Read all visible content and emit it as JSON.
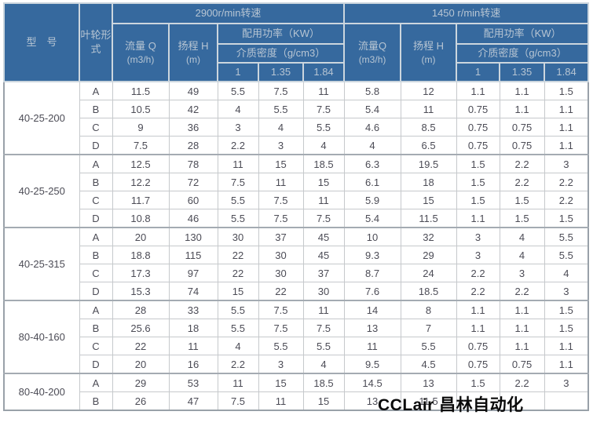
{
  "table": {
    "header": {
      "model": "型　号",
      "impeller": "叶轮形式",
      "speed_2900": "2900r/min转速",
      "speed_1450": "1450 r/min转速",
      "flow_2900": "流量 Q",
      "flow_1450": "流量Q",
      "flow_unit": "(m3/h)",
      "head_label": "扬程 H",
      "head_unit": "(m)",
      "power": "配用功率（KW）",
      "density": "介质密度（g/cm3）",
      "density_values": [
        "1",
        "1.35",
        "1.84"
      ]
    },
    "groups": [
      {
        "model": "40-25-200",
        "rows": [
          {
            "type": "A",
            "values": [
              "11.5",
              "49",
              "5.5",
              "7.5",
              "11",
              "5.8",
              "12",
              "1.1",
              "1.1",
              "1.5"
            ]
          },
          {
            "type": "B",
            "values": [
              "10.5",
              "42",
              "4",
              "5.5",
              "7.5",
              "5.4",
              "11",
              "0.75",
              "1.1",
              "1.1"
            ]
          },
          {
            "type": "C",
            "values": [
              "9",
              "36",
              "3",
              "4",
              "5.5",
              "4.6",
              "8.5",
              "0.75",
              "0.75",
              "1.1"
            ]
          },
          {
            "type": "D",
            "values": [
              "7.5",
              "28",
              "2.2",
              "3",
              "4",
              "4",
              "6.5",
              "0.75",
              "0.75",
              "1.1"
            ]
          }
        ]
      },
      {
        "model": "40-25-250",
        "rows": [
          {
            "type": "A",
            "values": [
              "12.5",
              "78",
              "11",
              "15",
              "18.5",
              "6.3",
              "19.5",
              "1.5",
              "2.2",
              "3"
            ]
          },
          {
            "type": "B",
            "values": [
              "12.2",
              "72",
              "7.5",
              "11",
              "15",
              "6.1",
              "18",
              "1.5",
              "2.2",
              "2.2"
            ]
          },
          {
            "type": "C",
            "values": [
              "11.7",
              "60",
              "5.5",
              "7.5",
              "11",
              "5.9",
              "15",
              "1.5",
              "1.5",
              "2.2"
            ]
          },
          {
            "type": "D",
            "values": [
              "10.8",
              "46",
              "5.5",
              "7.5",
              "7.5",
              "5.4",
              "11.5",
              "1.1",
              "1.5",
              "1.5"
            ]
          }
        ]
      },
      {
        "model": "40-25-315",
        "rows": [
          {
            "type": "A",
            "values": [
              "20",
              "130",
              "30",
              "37",
              "45",
              "10",
              "32",
              "3",
              "4",
              "5.5"
            ]
          },
          {
            "type": "B",
            "values": [
              "18.8",
              "115",
              "22",
              "30",
              "45",
              "9.3",
              "29",
              "3",
              "4",
              "5.5"
            ]
          },
          {
            "type": "C",
            "values": [
              "17.3",
              "97",
              "22",
              "30",
              "37",
              "8.7",
              "24",
              "2.2",
              "3",
              "4"
            ]
          },
          {
            "type": "D",
            "values": [
              "15.3",
              "74",
              "15",
              "22",
              "30",
              "7.6",
              "18.5",
              "2.2",
              "2.2",
              "3"
            ]
          }
        ]
      },
      {
        "model": "80-40-160",
        "rows": [
          {
            "type": "A",
            "values": [
              "28",
              "33",
              "5.5",
              "7.5",
              "11",
              "14",
              "8",
              "1.1",
              "1.1",
              "1.5"
            ]
          },
          {
            "type": "B",
            "values": [
              "25.6",
              "18",
              "5.5",
              "7.5",
              "7.5",
              "13",
              "7",
              "1.1",
              "1.1",
              "1.5"
            ]
          },
          {
            "type": "C",
            "values": [
              "22",
              "11",
              "4",
              "5.5",
              "5.5",
              "11",
              "5.5",
              "0.75",
              "1.1",
              "1.1"
            ]
          },
          {
            "type": "D",
            "values": [
              "20",
              "16",
              "2.2",
              "3",
              "4",
              "9.5",
              "4.5",
              "0.75",
              "0.75",
              "1.1"
            ]
          }
        ]
      },
      {
        "model": "80-40-200",
        "rows": [
          {
            "type": "A",
            "values": [
              "29",
              "53",
              "11",
              "15",
              "18.5",
              "14.5",
              "13",
              "1.5",
              "2.2",
              "3"
            ]
          },
          {
            "type": "B",
            "values": [
              "26",
              "47",
              "7.5",
              "11",
              "15",
              "13",
              "11.5",
              "",
              "",
              ""
            ]
          }
        ]
      }
    ]
  },
  "watermark": "CCLair 昌林自动化",
  "colors": {
    "header_bg": "#36699e",
    "header_text": "#b7c5d3",
    "grid_line": "#c6c9cc",
    "outer_border": "#99a1a9",
    "data_text": "#4c4c56",
    "watermark_text": "#0a0a0a"
  }
}
